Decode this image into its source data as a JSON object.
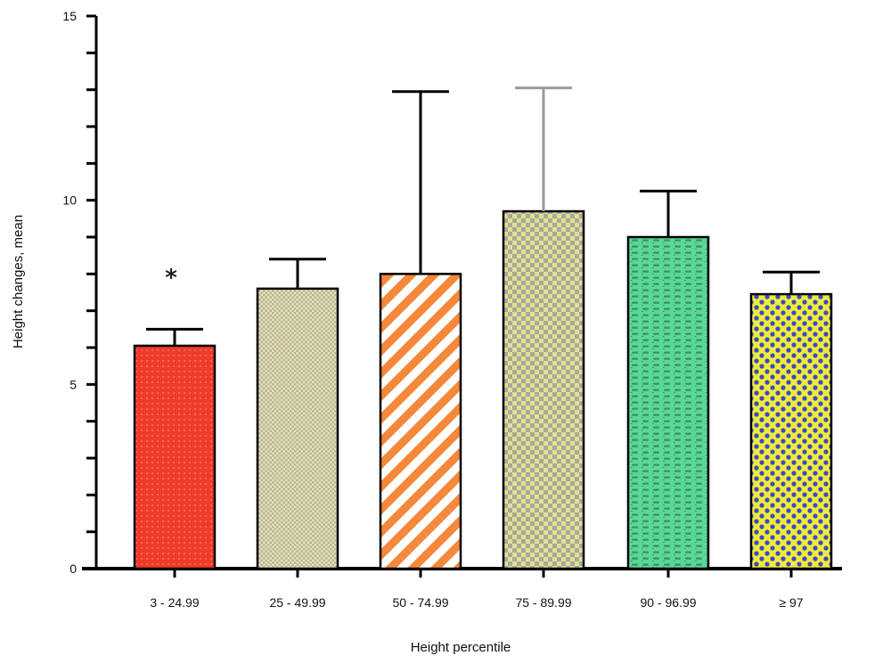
{
  "chart_data": {
    "type": "bar",
    "xlabel": "Height percentile",
    "ylabel": "Height changes, mean",
    "ylim": [
      0,
      15
    ],
    "y_major_ticks": [
      0,
      5,
      10,
      15
    ],
    "y_minor_step": 1,
    "categories": [
      "3 - 24.99",
      "25 - 49.99",
      "50 - 74.99",
      "75 - 89.99",
      "90 - 96.99",
      "≥ 97"
    ],
    "values": [
      6.05,
      7.6,
      8.0,
      9.7,
      9.0,
      7.45
    ],
    "error_upper": [
      6.5,
      8.4,
      12.95,
      13.05,
      10.25,
      8.05
    ],
    "annotations": [
      {
        "category_index": 0,
        "text": "*"
      }
    ],
    "colors": {
      "bar_0": "#f03a2a",
      "bar_1": "#e6e1b4",
      "bar_2": "#f5883a",
      "bar_3": "#e2e08e",
      "bar_4": "#58d896",
      "bar_5": "#f0ea3a",
      "error_bar_3": "#9a9a9a",
      "axis": "#000000"
    },
    "patterns": [
      "dots",
      "fine-check",
      "diagonal-stripes",
      "check",
      "dashes",
      "diamond-dots"
    ]
  }
}
